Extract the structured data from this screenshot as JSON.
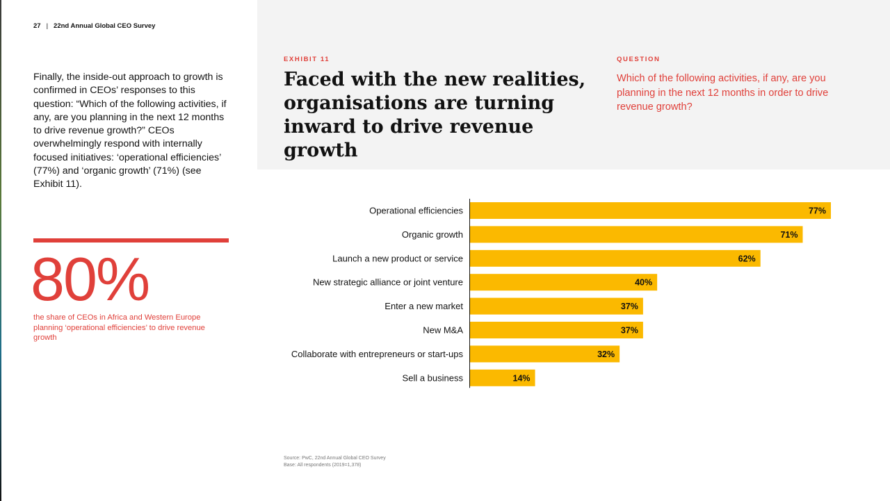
{
  "page": {
    "number": "27",
    "report_title": "22nd Annual Global CEO Survey"
  },
  "intro_text": "Finally, the inside-out approach to growth is confirmed in CEOs’ responses to this question: “Which of the following activities, if any, are you planning in the next 12 months to drive revenue growth?” CEOs overwhelmingly respond with internally focused initiatives: ‘operational efficiencies’ (77%) and ‘organic growth’ (71%) (see Exhibit 11).",
  "stat": {
    "value": "80%",
    "description": "the share of CEOs in Africa and Western Europe planning ‘operational efficiencies’ to drive revenue growth"
  },
  "exhibit": {
    "label": "EXHIBIT 11",
    "title": "Faced with the new realities, organisations are turning inward to drive revenue growth"
  },
  "question": {
    "label": "QUESTION",
    "text": "Which of the following activities, if any, are you planning in the next 12 months in order to drive revenue growth?"
  },
  "chart_data": {
    "type": "bar",
    "orientation": "horizontal",
    "categories": [
      "Operational efficiencies",
      "Organic growth",
      "Launch a new product or service",
      "New strategic alliance or joint venture",
      "Enter a new market",
      "New M&A",
      "Collaborate with entrepreneurs or start-ups",
      "Sell a business"
    ],
    "values": [
      77,
      71,
      62,
      40,
      37,
      37,
      32,
      14
    ],
    "value_labels": [
      "77%",
      "71%",
      "62%",
      "40%",
      "37%",
      "37%",
      "32%",
      "14%"
    ],
    "title": "",
    "xlabel": "",
    "ylabel": "",
    "xlim": [
      0,
      80
    ],
    "grid": false,
    "bar_color": "#fbb900"
  },
  "source": {
    "line1": "Source: PwC, 22nd Annual Global CEO Survey",
    "line2": "Base: All respondents (2019=1,378)"
  },
  "colors": {
    "accent": "#e0403a",
    "panel": "#f3f3f3",
    "bar": "#fbb900"
  }
}
